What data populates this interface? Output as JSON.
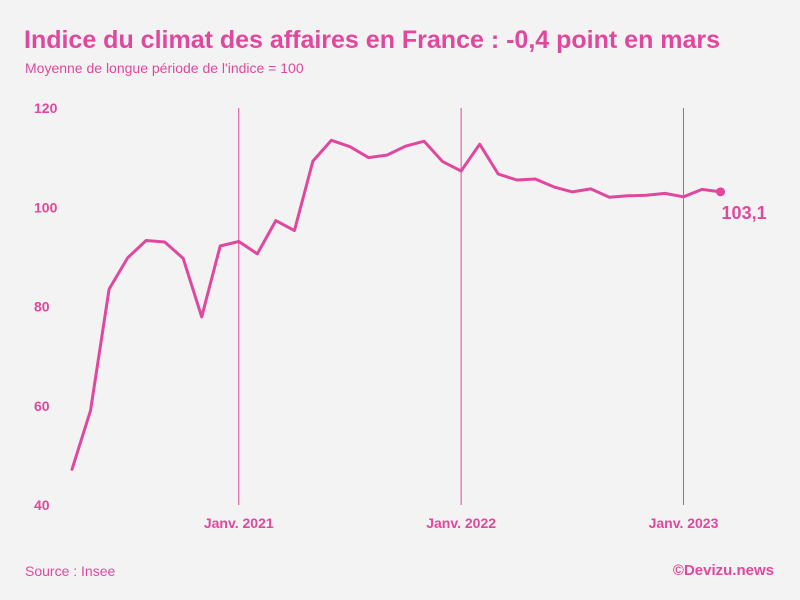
{
  "header": {
    "title": "Indice du climat des affaires en France : -0,4 point en mars",
    "subtitle": "Moyenne de longue période de l'indice = 100"
  },
  "footer": {
    "source": "Source : Insee",
    "credit": "©Devizu.news"
  },
  "colors": {
    "accent": "#e0489e",
    "background": "#f3f3f3"
  },
  "chart_data": {
    "type": "line",
    "title": "Indice du climat des affaires en France : -0,4 point en mars",
    "subtitle": "Moyenne de longue période de l'indice = 100",
    "xlabel": "",
    "ylabel": "",
    "ylim": [
      40,
      120
    ],
    "yticks": [
      40,
      60,
      80,
      100,
      120
    ],
    "yticks_labels": [
      "40",
      "60",
      "80",
      "100",
      "120"
    ],
    "xticks": [
      {
        "label": "Janv. 2021",
        "index": 9
      },
      {
        "label": "Janv. 2022",
        "index": 21
      },
      {
        "label": "Janv. 2023",
        "index": 33
      }
    ],
    "grid": "vertical lines at January of each year",
    "x": [
      "2020-04",
      "2020-05",
      "2020-06",
      "2020-07",
      "2020-08",
      "2020-09",
      "2020-10",
      "2020-11",
      "2020-12",
      "2021-01",
      "2021-02",
      "2021-03",
      "2021-04",
      "2021-05",
      "2021-06",
      "2021-07",
      "2021-08",
      "2021-09",
      "2021-10",
      "2021-11",
      "2021-12",
      "2022-01",
      "2022-02",
      "2022-03",
      "2022-04",
      "2022-05",
      "2022-06",
      "2022-07",
      "2022-08",
      "2022-09",
      "2022-10",
      "2022-11",
      "2022-12",
      "2023-01",
      "2023-02",
      "2023-03"
    ],
    "series": [
      {
        "values": [
          47.2,
          59,
          83.5,
          89.8,
          93.3,
          93,
          89.7,
          77.9,
          92.2,
          93.1,
          90.6,
          97.3,
          95.3,
          109.3,
          113.5,
          112.2,
          110,
          110.5,
          112.3,
          113.3,
          109.2,
          107.3,
          112.7,
          106.7,
          105.5,
          105.7,
          104.1,
          103.1,
          103.7,
          102,
          102.3,
          102.4,
          102.8,
          102.1,
          103.6,
          103.1
        ]
      }
    ],
    "last_value_label": "103,1"
  }
}
